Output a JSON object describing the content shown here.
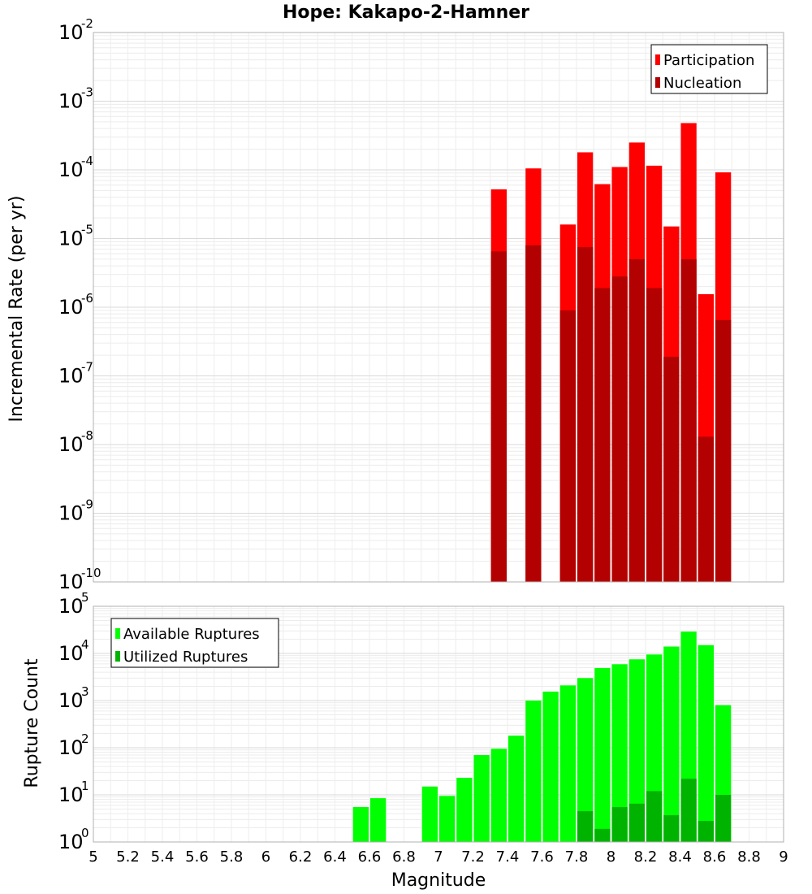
{
  "chart_data": [
    {
      "type": "bar",
      "title": "Hope: Kakapo-2-Hamner",
      "xlabel": "",
      "ylabel": "Incremental Rate (per yr)",
      "xlim": [
        5,
        9
      ],
      "ylim": [
        1e-10,
        0.01
      ],
      "yscale": "log",
      "grid": true,
      "legend_position": "top-right",
      "bar_width": 0.1,
      "x": [
        7.35,
        7.55,
        7.75,
        7.85,
        7.95,
        8.05,
        8.15,
        8.25,
        8.35,
        8.45,
        8.55,
        8.65
      ],
      "series": [
        {
          "name": "Participation",
          "color": "#ff0000",
          "values": [
            5.2e-05,
            0.000105,
            1.6e-05,
            0.00018,
            6.2e-05,
            0.00011,
            0.00025,
            0.000115,
            1.5e-05,
            0.00048,
            1.55e-06,
            9.2e-05
          ]
        },
        {
          "name": "Nucleation",
          "color": "#b30000",
          "values": [
            6.5e-06,
            8e-06,
            9e-07,
            7.5e-06,
            1.9e-06,
            2.8e-06,
            5e-06,
            1.9e-06,
            1.9e-07,
            5e-06,
            1.3e-08,
            6.5e-07
          ]
        }
      ]
    },
    {
      "type": "bar",
      "title": "",
      "xlabel": "Magnitude",
      "ylabel": "Rupture Count",
      "xlim": [
        5,
        9
      ],
      "ylim": [
        1,
        100000.0
      ],
      "yscale": "log",
      "grid": true,
      "legend_position": "top-left",
      "bar_width": 0.1,
      "x": [
        6.45,
        6.55,
        6.65,
        6.75,
        6.95,
        7.05,
        7.15,
        7.25,
        7.35,
        7.45,
        7.55,
        7.65,
        7.75,
        7.85,
        7.95,
        8.05,
        8.15,
        8.25,
        8.35,
        8.45,
        8.55,
        8.65
      ],
      "series": [
        {
          "name": "Available Ruptures",
          "color": "#00ff00",
          "values": [
            1,
            5.5,
            8.5,
            1,
            15,
            9.5,
            23,
            70,
            95,
            180,
            1000,
            1550,
            2100,
            3000,
            4900,
            5900,
            7500,
            9500,
            14000,
            29000,
            15000,
            800
          ]
        },
        {
          "name": "Utilized Ruptures",
          "color": "#00b300",
          "values": [
            0,
            0,
            0,
            0,
            0,
            0,
            0,
            0,
            1,
            0,
            1,
            0,
            1,
            4.5,
            1.9,
            5.5,
            6.5,
            12,
            3.7,
            22,
            2.8,
            10
          ]
        }
      ],
      "x_ticks": [
        "5",
        "5.2",
        "5.4",
        "5.6",
        "5.8",
        "6",
        "6.2",
        "6.4",
        "6.6",
        "6.8",
        "7",
        "7.2",
        "7.4",
        "7.6",
        "7.8",
        "8",
        "8.2",
        "8.4",
        "8.6",
        "8.8",
        "9"
      ]
    }
  ]
}
